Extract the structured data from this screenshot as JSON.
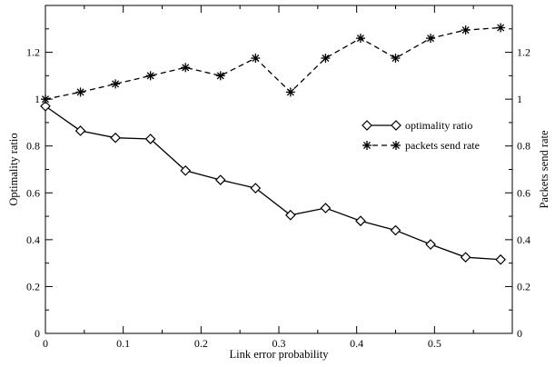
{
  "chart_data": {
    "type": "line",
    "title": "",
    "xlabel": "Link error probability",
    "ylabel": "Optimality ratio",
    "y2label": "Packets send rate",
    "xlim": [
      0,
      0.6
    ],
    "ylim": [
      0,
      1.4
    ],
    "y2lim": [
      0,
      1.4
    ],
    "xticks": [
      0,
      0.1,
      0.2,
      0.3,
      0.4,
      0.5
    ],
    "xtick_labels": [
      "0",
      "0.1",
      "0.2",
      "0.3",
      "0.4",
      "0.5"
    ],
    "yticks": [
      0,
      0.2,
      0.4,
      0.6,
      0.8,
      1,
      1.2
    ],
    "ytick_labels": [
      "0",
      "0.2",
      "0.4",
      "0.6",
      "0.8",
      "1",
      "1.2"
    ],
    "y2ticks": [
      0,
      0.2,
      0.4,
      0.6,
      0.8,
      1,
      1.2
    ],
    "y2tick_labels": [
      "0",
      "0.2",
      "0.4",
      "0.6",
      "0.8",
      "1",
      "1.2"
    ],
    "grid": false,
    "legend_position": "right",
    "x": [
      0,
      0.045,
      0.09,
      0.135,
      0.18,
      0.225,
      0.27,
      0.315,
      0.36,
      0.405,
      0.45,
      0.495,
      0.54,
      0.585
    ],
    "series": [
      {
        "name": "optimality ratio",
        "axis": "left",
        "marker": "diamond",
        "line_style": "solid",
        "values": [
          0.97,
          0.865,
          0.835,
          0.83,
          0.695,
          0.655,
          0.62,
          0.505,
          0.535,
          0.48,
          0.44,
          0.38,
          0.325,
          0.315
        ]
      },
      {
        "name": "packets send rate",
        "axis": "right",
        "marker": "asterisk",
        "line_style": "dashed",
        "values": [
          1.0,
          1.03,
          1.065,
          1.1,
          1.135,
          1.1,
          1.175,
          1.03,
          1.175,
          1.26,
          1.175,
          1.26,
          1.295,
          1.305
        ]
      }
    ]
  }
}
